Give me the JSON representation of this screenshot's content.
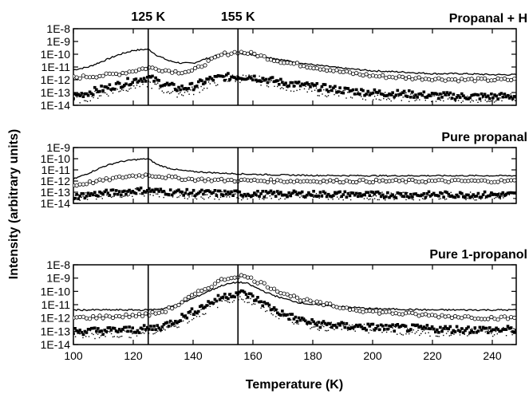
{
  "chart_data": {
    "type": "line",
    "xlabel": "Temperature (K)",
    "ylabel": "Intensity (arbitrary units)",
    "xlim": [
      100,
      248
    ],
    "x_ticks": [
      100,
      120,
      140,
      160,
      180,
      200,
      220,
      240
    ],
    "y_scale": "log",
    "vertical_markers": [
      {
        "x": 125,
        "label": "125 K"
      },
      {
        "x": 155,
        "label": "155 K"
      }
    ],
    "panels": [
      {
        "title": "Propanal + H",
        "ylim": [
          1e-14,
          1e-08
        ],
        "y_ticks": [
          {
            "v": 1e-08,
            "label": "1E-8"
          },
          {
            "v": 1e-09,
            "label": "1E-9"
          },
          {
            "v": 1e-10,
            "label": "1E-10"
          },
          {
            "v": 1e-11,
            "label": "1E-11"
          },
          {
            "v": 1e-12,
            "label": "1E-12"
          },
          {
            "v": 1e-13,
            "label": "1E-13"
          },
          {
            "v": 1e-14,
            "label": "1E-14"
          }
        ],
        "series": [
          {
            "style": "solid-line",
            "x": [
              100,
              105,
              110,
              115,
              120,
              125,
              128,
              132,
              136,
              140,
              145,
              150,
              155,
              160,
              165,
              170,
              180,
              190,
              200,
              210,
              220,
              230,
              240,
              248
            ],
            "y": [
              6e-12,
              1e-11,
              3e-11,
              9e-11,
              2e-10,
              2.5e-10,
              8e-11,
              3e-11,
              2e-11,
              2e-11,
              5e-11,
              1.1e-10,
              1.3e-10,
              9e-11,
              6e-11,
              3.5e-11,
              1.5e-11,
              8e-12,
              5e-12,
              4e-12,
              3e-12,
              3e-12,
              2.5e-12,
              2.5e-12
            ]
          },
          {
            "style": "open-circles",
            "x": [
              100,
              105,
              110,
              115,
              120,
              125,
              130,
              135,
              140,
              145,
              150,
              155,
              160,
              165,
              170,
              180,
              190,
              200,
              210,
              220,
              230,
              240,
              248
            ],
            "y": [
              1.5e-12,
              1.8e-12,
              2.2e-12,
              3e-12,
              5e-12,
              9e-12,
              6e-12,
              4e-12,
              5e-12,
              2.5e-11,
              1e-10,
              1.5e-10,
              1.1e-10,
              5e-11,
              2.5e-11,
              1e-11,
              4e-12,
              2e-12,
              1.5e-12,
              1.2e-12,
              1e-12,
              1e-12,
              1e-12
            ]
          },
          {
            "style": "filled-squares",
            "x": [
              100,
              105,
              110,
              115,
              120,
              125,
              130,
              135,
              140,
              145,
              150,
              155,
              160,
              165,
              170,
              180,
              190,
              200,
              210,
              220,
              230,
              240,
              248
            ],
            "y": [
              5e-14,
              1e-13,
              2e-13,
              4e-13,
              9e-13,
              1.5e-12,
              5e-13,
              2e-13,
              3e-13,
              1e-12,
              1.6e-12,
              1.8e-12,
              1.6e-12,
              1e-12,
              6e-13,
              3e-13,
              1.5e-13,
              1e-13,
              8e-14,
              6e-14,
              5e-14,
              5e-14,
              5e-14
            ]
          },
          {
            "style": "dotted",
            "x": [
              100,
              105,
              110,
              115,
              120,
              125,
              130,
              135,
              140,
              145,
              150,
              155,
              160,
              170,
              180,
              190,
              200,
              220,
              240,
              248
            ],
            "y": [
              3e-14,
              5e-14,
              1e-13,
              2e-13,
              4e-13,
              6e-13,
              2e-13,
              1e-13,
              1.5e-13,
              5e-13,
              1.2e-12,
              1.5e-12,
              1.2e-12,
              4e-13,
              1.5e-13,
              8e-14,
              6e-14,
              4e-14,
              4e-14,
              4e-14
            ]
          }
        ]
      },
      {
        "title": "Pure propanal",
        "ylim": [
          1e-14,
          1e-09
        ],
        "y_ticks": [
          {
            "v": 1e-09,
            "label": "1E-9"
          },
          {
            "v": 1e-10,
            "label": "1E-10"
          },
          {
            "v": 1e-11,
            "label": "1E-11"
          },
          {
            "v": 1e-12,
            "label": "1E-12"
          },
          {
            "v": 1e-13,
            "label": "1E-13"
          },
          {
            "v": 1e-14,
            "label": "1E-14"
          }
        ],
        "series": [
          {
            "style": "solid-line",
            "x": [
              100,
              105,
              110,
              115,
              120,
              125,
              128,
              132,
              136,
              140,
              150,
              160,
              170,
              180,
              200,
              220,
              240,
              248
            ],
            "y": [
              1.5e-12,
              5e-12,
              2e-11,
              5e-11,
              8e-11,
              1e-10,
              3e-11,
              1.4e-11,
              9e-12,
              7e-12,
              5e-12,
              4e-12,
              3.5e-12,
              3.2e-12,
              3e-12,
              3e-12,
              3e-12,
              3e-12
            ]
          },
          {
            "style": "open-circles",
            "x": [
              100,
              105,
              110,
              115,
              120,
              125,
              130,
              135,
              140,
              150,
              160,
              170,
              180,
              200,
              220,
              240,
              248
            ],
            "y": [
              4e-13,
              7e-13,
              1.2e-12,
              2e-12,
              3e-12,
              3.5e-12,
              2.5e-12,
              1.8e-12,
              1.4e-12,
              1.2e-12,
              1.1e-12,
              1e-12,
              1e-12,
              1e-12,
              1e-12,
              1e-12,
              1e-12
            ]
          },
          {
            "style": "filled-squares",
            "x": [
              100,
              105,
              110,
              115,
              120,
              125,
              130,
              140,
              150,
              160,
              180,
              200,
              220,
              240,
              248
            ],
            "y": [
              4e-14,
              6e-14,
              8e-14,
              1e-13,
              1.3e-13,
              1.5e-13,
              1.1e-13,
              9e-14,
              8e-14,
              7e-14,
              7e-14,
              6e-14,
              6e-14,
              6e-14,
              6e-14
            ]
          },
          {
            "style": "dotted",
            "x": [
              100,
              110,
              120,
              125,
              130,
              140,
              160,
              180,
              200,
              220,
              240,
              248
            ],
            "y": [
              4e-14,
              7e-14,
              1e-13,
              1.2e-13,
              8e-14,
              6e-14,
              5e-14,
              5e-14,
              5e-14,
              5e-14,
              5e-14,
              5e-14
            ]
          }
        ]
      },
      {
        "title": "Pure 1-propanol",
        "ylim": [
          1e-14,
          1e-08
        ],
        "y_ticks": [
          {
            "v": 1e-08,
            "label": "1E-8"
          },
          {
            "v": 1e-09,
            "label": "1E-9"
          },
          {
            "v": 1e-10,
            "label": "1E-10"
          },
          {
            "v": 1e-11,
            "label": "1E-11"
          },
          {
            "v": 1e-12,
            "label": "1E-12"
          },
          {
            "v": 1e-13,
            "label": "1E-13"
          },
          {
            "v": 1e-14,
            "label": "1E-14"
          }
        ],
        "series": [
          {
            "style": "solid-line",
            "x": [
              100,
              110,
              120,
              125,
              130,
              135,
              140,
              145,
              150,
              155,
              158,
              162,
              166,
              170,
              175,
              180,
              190,
              200,
              220,
              240,
              248
            ],
            "y": [
              4e-12,
              4e-12,
              4e-12,
              4e-12,
              5e-12,
              1e-11,
              3e-11,
              1e-10,
              3e-10,
              5e-10,
              4e-10,
              1.5e-10,
              6e-11,
              3e-11,
              1.5e-11,
              1e-11,
              7e-12,
              5e-12,
              4e-12,
              4e-12,
              4e-12
            ]
          },
          {
            "style": "open-circles",
            "x": [
              100,
              110,
              120,
              125,
              130,
              135,
              140,
              145,
              150,
              155,
              158,
              162,
              166,
              170,
              175,
              180,
              190,
              200,
              220,
              240,
              248
            ],
            "y": [
              1e-12,
              1.2e-12,
              1.5e-12,
              1.8e-12,
              3e-12,
              1e-11,
              5e-11,
              2e-10,
              8e-10,
              1.5e-09,
              1.2e-09,
              5e-10,
              2e-10,
              8e-11,
              3e-11,
              1.5e-11,
              6e-12,
              3e-12,
              1.5e-12,
              1e-12,
              1e-12
            ]
          },
          {
            "style": "filled-squares",
            "x": [
              100,
              110,
              120,
              125,
              130,
              135,
              140,
              145,
              150,
              155,
              158,
              162,
              166,
              170,
              175,
              180,
              190,
              200,
              220,
              240,
              248
            ],
            "y": [
              1e-13,
              1.1e-13,
              1.3e-13,
              1.5e-13,
              2.5e-13,
              8e-13,
              3e-12,
              1.2e-11,
              4e-11,
              8e-11,
              6e-11,
              2e-11,
              6e-12,
              2e-12,
              8e-13,
              4e-13,
              2.5e-13,
              2e-13,
              1.5e-13,
              1.3e-13,
              1.3e-13
            ]
          },
          {
            "style": "dotted",
            "x": [
              100,
              110,
              120,
              130,
              140,
              150,
              155,
              160,
              170,
              180,
              200,
              220,
              240,
              248
            ],
            "y": [
              6e-14,
              7e-14,
              8e-14,
              1.5e-13,
              1.5e-12,
              2.5e-11,
              5e-11,
              1.5e-11,
              1.5e-12,
              3e-13,
              1.5e-13,
              1e-13,
              1e-13,
              1e-13
            ]
          }
        ]
      }
    ]
  }
}
